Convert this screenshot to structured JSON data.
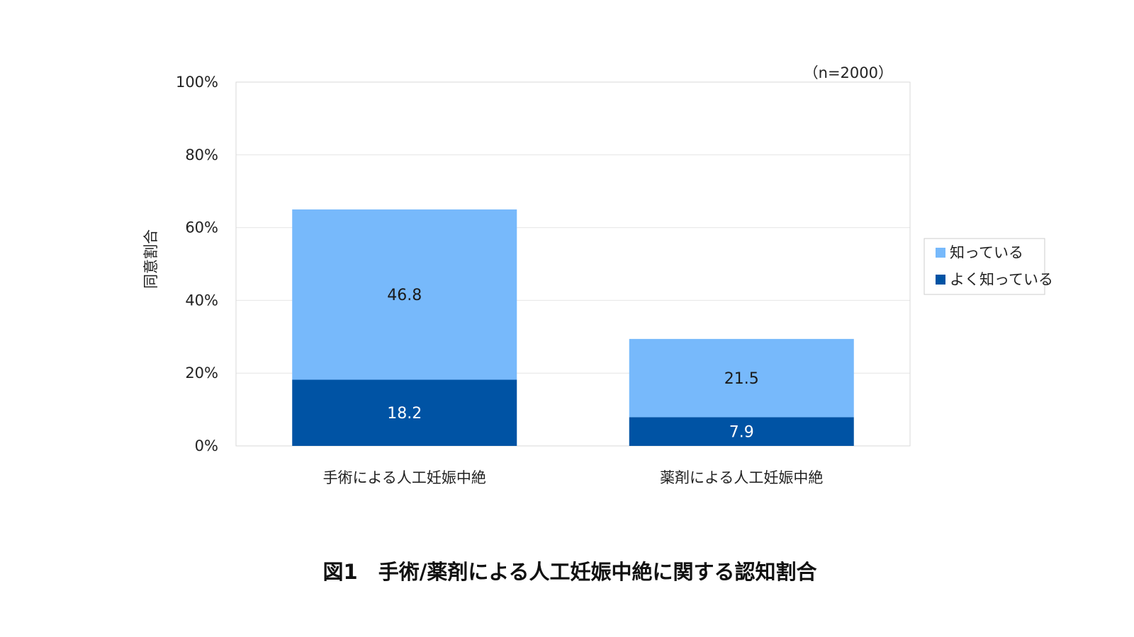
{
  "chart_data": {
    "type": "bar",
    "stacked": true,
    "title": "",
    "caption": "図1　手術/薬剤による人工妊娠中絶に関する認知割合",
    "note": "（n=2000）",
    "ylabel": "同意割合",
    "xlabel": "",
    "ylim": [
      0,
      100
    ],
    "yticks": [
      0,
      20,
      40,
      60,
      80,
      100
    ],
    "ytick_labels": [
      "0%",
      "20%",
      "40%",
      "60%",
      "80%",
      "100%"
    ],
    "grid": true,
    "legend_position": "right",
    "categories": [
      "手術による人工妊娠中絶",
      "薬剤による人工妊娠中絶"
    ],
    "series": [
      {
        "name": "よく知っている",
        "values": [
          18.2,
          7.9
        ],
        "labels": [
          "18.2",
          "7.9"
        ],
        "color": "#0053a4",
        "label_color": "#ffffff"
      },
      {
        "name": "知っている",
        "values": [
          46.8,
          21.5
        ],
        "labels": [
          "46.8",
          "21.5"
        ],
        "color": "#77b9fb",
        "label_color": "#1a1a1a"
      }
    ],
    "legend": [
      {
        "name": "知っている",
        "color": "#77b9fb"
      },
      {
        "name": "よく知っている",
        "color": "#0053a4"
      }
    ],
    "colors": {
      "grid": "#e6e6e6",
      "frame": "#d9d9d9"
    }
  }
}
